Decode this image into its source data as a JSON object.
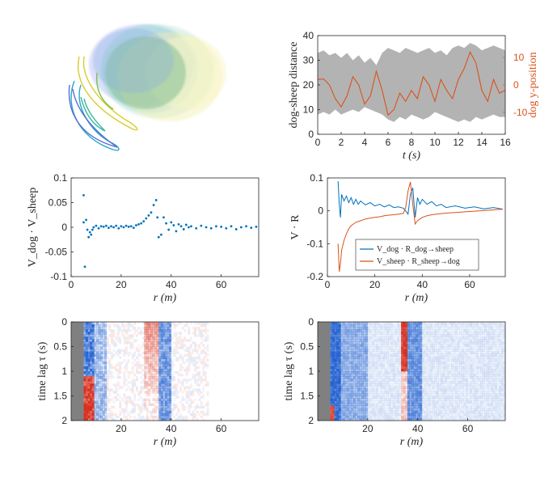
{
  "chart_data": [
    {
      "id": "trajectories",
      "type": "scatter",
      "title": "",
      "xlabel": "",
      "ylabel": "",
      "colors": [
        "#5b6fd6",
        "#2aa7c9",
        "#36b8a0",
        "#7cc24a",
        "#d8cd2a"
      ]
    },
    {
      "id": "distance",
      "type": "area",
      "xlabel": "t (s)",
      "ylabel": "dog-sheep distance",
      "y2label": "dog y-position",
      "xlim": [
        0,
        16
      ],
      "ylim": [
        0,
        40
      ],
      "y2lim": [
        -18,
        18
      ],
      "xticks": [
        0,
        2,
        4,
        6,
        8,
        10,
        12,
        14,
        16
      ],
      "yticks": [
        0,
        10,
        20,
        30,
        40
      ],
      "y2ticks": [
        -10,
        0,
        10
      ],
      "band_color": "#b3b3b3",
      "line_color": "#d95319",
      "band_upper": [
        [
          0,
          33
        ],
        [
          0.5,
          34
        ],
        [
          1,
          32
        ],
        [
          1.5,
          33
        ],
        [
          2,
          31
        ],
        [
          2.5,
          33
        ],
        [
          3,
          30
        ],
        [
          3.5,
          32
        ],
        [
          4,
          29
        ],
        [
          4.5,
          31
        ],
        [
          5,
          28
        ],
        [
          5.5,
          33
        ],
        [
          6,
          35
        ],
        [
          6.5,
          34
        ],
        [
          7,
          33
        ],
        [
          7.5,
          35
        ],
        [
          8,
          34
        ],
        [
          8.5,
          33
        ],
        [
          9,
          34
        ],
        [
          9.5,
          35
        ],
        [
          10,
          33
        ],
        [
          10.5,
          34
        ],
        [
          11,
          32
        ],
        [
          11.5,
          35
        ],
        [
          12,
          36
        ],
        [
          12.5,
          35
        ],
        [
          13,
          37
        ],
        [
          13.5,
          36
        ],
        [
          14,
          34
        ],
        [
          14.5,
          35
        ],
        [
          15,
          36
        ],
        [
          15.5,
          35
        ],
        [
          16,
          34
        ]
      ],
      "band_lower": [
        [
          0,
          8
        ],
        [
          0.5,
          9
        ],
        [
          1,
          8
        ],
        [
          1.5,
          10
        ],
        [
          2,
          8
        ],
        [
          2.5,
          9
        ],
        [
          3,
          10
        ],
        [
          3.5,
          9
        ],
        [
          4,
          11
        ],
        [
          4.5,
          10
        ],
        [
          5,
          9
        ],
        [
          5.5,
          8
        ],
        [
          6,
          6
        ],
        [
          6.5,
          5
        ],
        [
          7,
          7
        ],
        [
          7.5,
          6
        ],
        [
          8,
          8
        ],
        [
          8.5,
          7
        ],
        [
          9,
          6
        ],
        [
          9.5,
          7
        ],
        [
          10,
          9
        ],
        [
          10.5,
          8
        ],
        [
          11,
          7
        ],
        [
          11.5,
          6
        ],
        [
          12,
          5
        ],
        [
          12.5,
          6
        ],
        [
          13,
          5
        ],
        [
          13.5,
          7
        ],
        [
          14,
          6
        ],
        [
          14.5,
          7
        ],
        [
          15,
          8
        ],
        [
          15.5,
          7
        ],
        [
          16,
          7
        ]
      ],
      "dog_y": [
        [
          0,
          2
        ],
        [
          0.5,
          2.2
        ],
        [
          1,
          0
        ],
        [
          1.5,
          -5
        ],
        [
          2,
          -8
        ],
        [
          2.5,
          -4
        ],
        [
          3,
          3
        ],
        [
          3.5,
          0
        ],
        [
          4,
          -7
        ],
        [
          4.5,
          -4
        ],
        [
          5,
          5
        ],
        [
          5.5,
          -2
        ],
        [
          6,
          -11
        ],
        [
          6.5,
          -9
        ],
        [
          7,
          -3
        ],
        [
          7.5,
          -6
        ],
        [
          8,
          -2
        ],
        [
          8.5,
          -5
        ],
        [
          9,
          3
        ],
        [
          9.5,
          0
        ],
        [
          10,
          -6
        ],
        [
          10.5,
          2
        ],
        [
          11,
          -2
        ],
        [
          11.5,
          -5
        ],
        [
          12,
          2
        ],
        [
          12.5,
          6
        ],
        [
          13,
          12
        ],
        [
          13.5,
          8
        ],
        [
          14,
          -2
        ],
        [
          14.5,
          -6
        ],
        [
          15,
          2
        ],
        [
          15.5,
          -3
        ],
        [
          16,
          -2
        ]
      ]
    },
    {
      "id": "vv_correlation",
      "type": "scatter",
      "xlabel": "r (m)",
      "ylabel": "V_dog · V_sheep",
      "xlim": [
        0,
        75
      ],
      "ylim": [
        -0.1,
        0.1
      ],
      "xticks": [
        0,
        20,
        40,
        60
      ],
      "yticks": [
        -0.1,
        -0.05,
        0,
        0.05,
        0.1
      ],
      "ytick_labels": [
        "-0.1",
        "-0.05",
        "0",
        "0.05",
        "0.1"
      ],
      "color": "#0072bd",
      "points": [
        [
          5,
          0.065
        ],
        [
          5.5,
          -0.08
        ],
        [
          5,
          0.01
        ],
        [
          6,
          0.015
        ],
        [
          6.5,
          -0.005
        ],
        [
          7,
          -0.02
        ],
        [
          7.5,
          -0.01
        ],
        [
          8,
          -0.015
        ],
        [
          8.5,
          -0.005
        ],
        [
          9,
          0
        ],
        [
          10,
          0.003
        ],
        [
          11,
          -0.002
        ],
        [
          12,
          0.002
        ],
        [
          13,
          0.001
        ],
        [
          14,
          0.003
        ],
        [
          15,
          -0.001
        ],
        [
          16,
          0.002
        ],
        [
          17,
          0
        ],
        [
          18,
          0.003
        ],
        [
          19,
          -0.002
        ],
        [
          20,
          0.002
        ],
        [
          21,
          0
        ],
        [
          22,
          0.003
        ],
        [
          23,
          0.001
        ],
        [
          24,
          0.002
        ],
        [
          25,
          -0.001
        ],
        [
          26,
          0.004
        ],
        [
          27,
          0.006
        ],
        [
          28,
          0.008
        ],
        [
          29,
          0.012
        ],
        [
          30,
          0.018
        ],
        [
          31,
          0.024
        ],
        [
          32,
          0.03
        ],
        [
          33,
          0.045
        ],
        [
          34,
          0.055
        ],
        [
          34.5,
          0.02
        ],
        [
          35,
          -0.02
        ],
        [
          36,
          -0.015
        ],
        [
          37,
          0.02
        ],
        [
          38,
          0.008
        ],
        [
          39,
          -0.005
        ],
        [
          40,
          0.01
        ],
        [
          41,
          0.004
        ],
        [
          42,
          -0.008
        ],
        [
          43,
          0.006
        ],
        [
          44,
          0.002
        ],
        [
          45,
          -0.004
        ],
        [
          46,
          0.005
        ],
        [
          47,
          0
        ],
        [
          48,
          0.002
        ],
        [
          50,
          -0.002
        ],
        [
          52,
          0.003
        ],
        [
          54,
          0
        ],
        [
          56,
          -0.002
        ],
        [
          58,
          0.002
        ],
        [
          60,
          0.001
        ],
        [
          62,
          -0.002
        ],
        [
          64,
          0.002
        ],
        [
          66,
          -0.004
        ],
        [
          68,
          0
        ],
        [
          70,
          0.002
        ],
        [
          72,
          -0.001
        ],
        [
          74,
          0.001
        ]
      ]
    },
    {
      "id": "vr_correlation",
      "type": "line",
      "xlabel": "r (m)",
      "ylabel": "V · R",
      "xlim": [
        0,
        75
      ],
      "ylim": [
        -0.2,
        0.1
      ],
      "xticks": [
        0,
        20,
        40,
        60
      ],
      "yticks": [
        -0.2,
        -0.1,
        0,
        0.1
      ],
      "ytick_labels": [
        "-0.2",
        "-0.1",
        "0",
        "0.1"
      ],
      "legend": [
        "V_dog · R_dog→sheep",
        "V_sheep · R_sheep→dog"
      ],
      "legend_position": "bottom-right",
      "series": [
        {
          "name": "dog",
          "color": "#0072bd",
          "points": [
            [
              4.5,
              0.09
            ],
            [
              5,
              0.02
            ],
            [
              5.5,
              -0.02
            ],
            [
              6,
              0.05
            ],
            [
              7,
              0.03
            ],
            [
              8,
              0.045
            ],
            [
              9,
              0.025
            ],
            [
              10,
              0.04
            ],
            [
              11,
              0.02
            ],
            [
              12,
              0.035
            ],
            [
              13,
              0.02
            ],
            [
              14,
              0.03
            ],
            [
              16,
              0.018
            ],
            [
              18,
              0.025
            ],
            [
              20,
              0.015
            ],
            [
              22,
              0.02
            ],
            [
              24,
              0.012
            ],
            [
              26,
              0.018
            ],
            [
              28,
              0.01
            ],
            [
              30,
              0.012
            ],
            [
              32,
              0.008
            ],
            [
              33,
              0.0
            ],
            [
              34,
              -0.01
            ],
            [
              35,
              0.05
            ],
            [
              36,
              0.07
            ],
            [
              37,
              -0.02
            ],
            [
              38,
              0.04
            ],
            [
              39,
              0.02
            ],
            [
              40,
              0.035
            ],
            [
              42,
              0.02
            ],
            [
              44,
              0.028
            ],
            [
              46,
              0.015
            ],
            [
              48,
              0.02
            ],
            [
              50,
              0.01
            ],
            [
              54,
              0.015
            ],
            [
              58,
              0.008
            ],
            [
              62,
              0.012
            ],
            [
              66,
              0.006
            ],
            [
              70,
              0.01
            ],
            [
              74,
              0.005
            ]
          ]
        },
        {
          "name": "sheep",
          "color": "#d95319",
          "points": [
            [
              4.5,
              -0.1
            ],
            [
              5,
              -0.185
            ],
            [
              5.5,
              -0.16
            ],
            [
              6,
              -0.12
            ],
            [
              7,
              -0.09
            ],
            [
              8,
              -0.07
            ],
            [
              9,
              -0.055
            ],
            [
              10,
              -0.045
            ],
            [
              12,
              -0.035
            ],
            [
              14,
              -0.03
            ],
            [
              16,
              -0.025
            ],
            [
              18,
              -0.022
            ],
            [
              20,
              -0.02
            ],
            [
              22,
              -0.018
            ],
            [
              24,
              -0.015
            ],
            [
              26,
              -0.013
            ],
            [
              28,
              -0.012
            ],
            [
              30,
              -0.01
            ],
            [
              32,
              -0.008
            ],
            [
              33,
              0.01
            ],
            [
              34,
              0.06
            ],
            [
              35,
              0.088
            ],
            [
              36,
              0.02
            ],
            [
              37,
              -0.04
            ],
            [
              38,
              -0.03
            ],
            [
              39,
              -0.025
            ],
            [
              40,
              -0.02
            ],
            [
              42,
              -0.015
            ],
            [
              44,
              -0.012
            ],
            [
              46,
              -0.01
            ],
            [
              50,
              -0.007
            ],
            [
              54,
              -0.005
            ],
            [
              58,
              -0.003
            ],
            [
              62,
              -0.001
            ],
            [
              66,
              0.001
            ],
            [
              70,
              0.003
            ],
            [
              74,
              0.005
            ]
          ]
        }
      ]
    },
    {
      "id": "heatmap_left",
      "type": "heatmap",
      "xlabel": "r (m)",
      "ylabel": "time lag τ (s)",
      "xlim": [
        0,
        75
      ],
      "ylim": [
        0,
        2
      ],
      "xticks": [
        20,
        40,
        60
      ],
      "yticks": [
        0,
        0.5,
        1,
        1.5,
        2
      ],
      "ytick_labels": [
        "0",
        "0.5",
        "1",
        "1.5",
        "2"
      ],
      "colors": {
        "positive": "#d7301f",
        "negative": "#1f5fcf",
        "masked": "#808080"
      }
    },
    {
      "id": "heatmap_right",
      "type": "heatmap",
      "xlabel": "r (m)",
      "ylabel": "time lag τ (s)",
      "xlim": [
        0,
        75
      ],
      "ylim": [
        0,
        2
      ],
      "xticks": [
        20,
        40,
        60
      ],
      "yticks": [
        0,
        0.5,
        1,
        1.5,
        2
      ],
      "ytick_labels": [
        "0",
        "0.5",
        "1",
        "1.5",
        "2"
      ],
      "colors": {
        "positive": "#d7301f",
        "negative": "#1f5fcf",
        "masked": "#808080"
      }
    }
  ]
}
